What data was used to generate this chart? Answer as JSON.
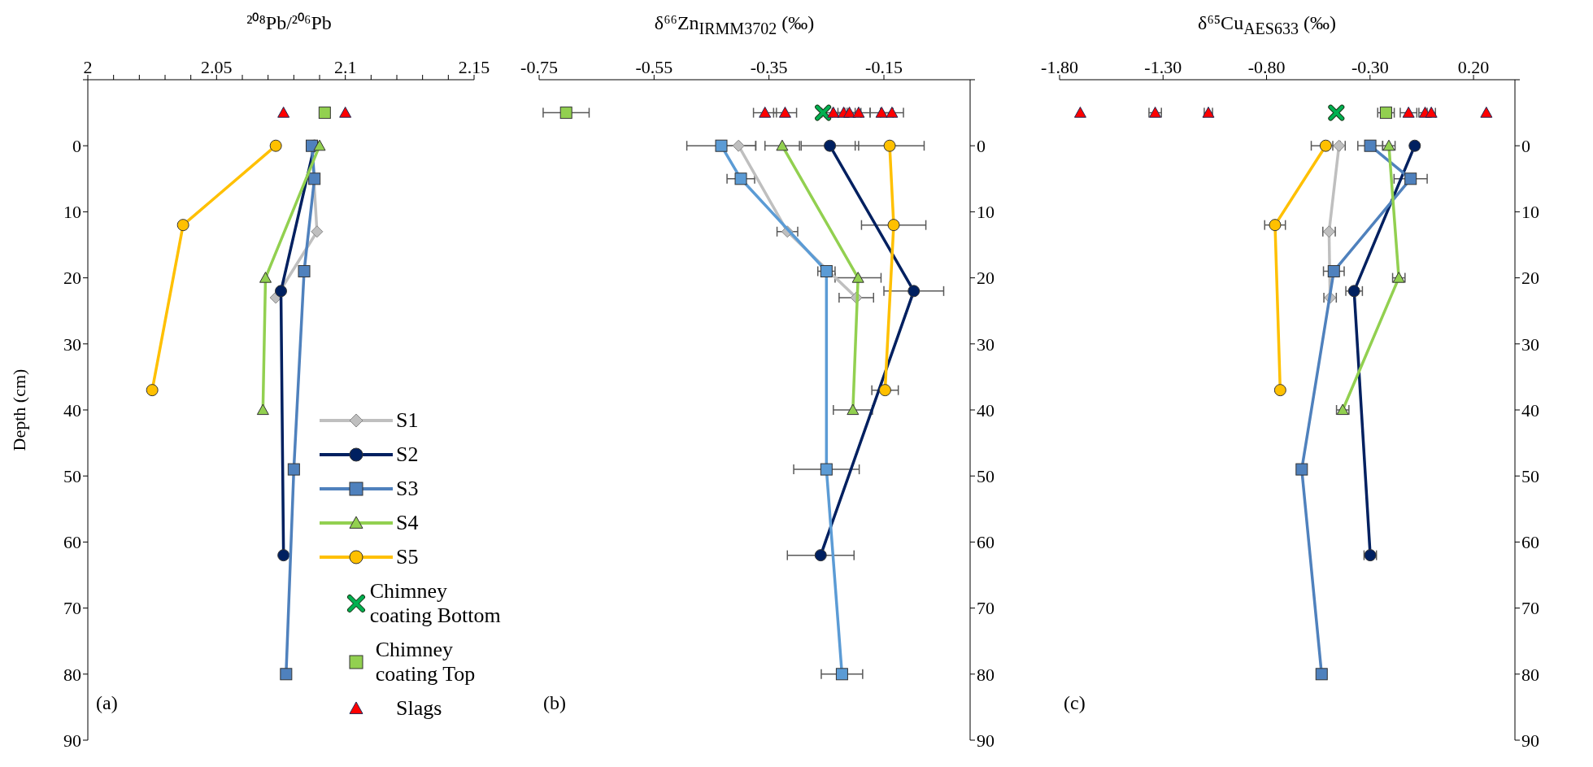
{
  "chart_data": [
    {
      "type": "line",
      "xlabel": "²⁰⁸Pb/²⁰⁶Pb",
      "ylabel": "Depth (cm)",
      "xlim": [
        2,
        2.15
      ],
      "xticks": [
        2,
        {
          "value": 2.01,
          "label": null
        },
        {
          "value": 2.02,
          "label": null
        },
        {
          "value": 2.03,
          "label": null
        },
        {
          "value": 2.04,
          "label": null
        },
        2.05,
        {
          "value": 2.06,
          "label": null
        },
        {
          "value": 2.07,
          "label": null
        },
        {
          "value": 2.08,
          "label": null
        },
        {
          "value": 2.09,
          "label": null
        },
        2.1,
        {
          "value": 2.11,
          "label": null
        },
        {
          "value": 2.12,
          "label": null
        },
        {
          "value": 2.13,
          "label": null
        },
        {
          "value": 2.14,
          "label": null
        },
        2.15
      ],
      "ylim": [
        90,
        -10
      ],
      "yticks": [
        {
          "value": -10,
          "label": null
        },
        0,
        10,
        20,
        30,
        40,
        50,
        60,
        70,
        80,
        90
      ],
      "legend": "bottom right",
      "annotations": [
        "(a)"
      ],
      "series": [
        {
          "name": "S1",
          "color": "#bfbfbf",
          "marker": "diamond",
          "x": [
            2.087,
            2.089,
            2.073
          ],
          "values": [
            0,
            13,
            23
          ]
        },
        {
          "name": "S2",
          "color": "#002060",
          "marker": "circle",
          "x": [
            2.088,
            2.075,
            2.076
          ],
          "values": [
            0,
            22,
            62
          ]
        },
        {
          "name": "S3",
          "color": "#4f81bd",
          "marker": "square",
          "x": [
            2.087,
            2.088,
            2.084,
            2.08,
            2.077
          ],
          "values": [
            0,
            5,
            19,
            49,
            80
          ]
        },
        {
          "name": "S4",
          "color": "#92d050",
          "marker": "triangle",
          "x": [
            2.09,
            2.069,
            2.068
          ],
          "values": [
            0,
            20,
            40
          ]
        },
        {
          "name": "S5",
          "color": "#ffc000",
          "marker": "circle",
          "x": [
            2.073,
            2.037,
            2.025
          ],
          "values": [
            0,
            12,
            37
          ]
        },
        {
          "name": "Chimney coating Bottom",
          "type": "scatter",
          "color": "#00b050",
          "marker": "cross"
        },
        {
          "name": "Chimney coating Top",
          "type": "scatter",
          "color": "#92d050",
          "marker": "square",
          "x": [
            2.092
          ],
          "values": [
            -5
          ]
        },
        {
          "name": "Slags",
          "type": "scatter",
          "color": "#ff0000",
          "marker": "triangle",
          "x": [
            2.076,
            2.1
          ],
          "values": [
            -5,
            -5
          ]
        }
      ]
    },
    {
      "type": "line",
      "xlabel": "δ⁶⁶Zn$_{IRMM3702}$ (‰)",
      "xlim": [
        -0.75,
        0
      ],
      "xticks": [
        -0.75,
        -0.55,
        -0.35,
        -0.15
      ],
      "y2lim": [
        90,
        -10
      ],
      "y2ticks": [
        {
          "value": -10,
          "label": null
        },
        0,
        10,
        20,
        30,
        40,
        50,
        60,
        70,
        80,
        90
      ],
      "annotations": [
        "(b)"
      ],
      "series": [
        {
          "color": "#bfbfbf",
          "marker": "diamond",
          "axis": "y2",
          "x": [
            -0.403,
            -0.318,
            -0.198
          ],
          "values": [
            0,
            13,
            23
          ],
          "xerrors": [
            0.03,
            0.018,
            0.03
          ]
        },
        {
          "color": "#002060",
          "marker": "circle",
          "axis": "y2",
          "x": [
            -0.244,
            -0.098,
            -0.26
          ],
          "values": [
            0,
            22,
            62
          ],
          "xerrors": [
            0.05,
            0.052,
            0.058
          ]
        },
        {
          "color": "#5b9bd5",
          "marker": "square",
          "axis": "y2",
          "x": [
            -0.433,
            -0.399,
            -0.25,
            -0.25,
            -0.223
          ],
          "values": [
            0,
            5,
            19,
            49,
            80
          ],
          "xerrors": [
            0.06,
            0.024,
            0.015,
            0.057,
            0.036
          ]
        },
        {
          "color": "#92d050",
          "marker": "triangle",
          "axis": "y2",
          "x": [
            -0.327,
            -0.195,
            -0.204
          ],
          "values": [
            0,
            20,
            40
          ],
          "xerrors": [
            0.03,
            0.04,
            0.034
          ]
        },
        {
          "color": "#ffc000",
          "marker": "circle",
          "axis": "y2",
          "x": [
            -0.14,
            -0.133,
            -0.148
          ],
          "values": [
            0,
            12,
            37
          ],
          "xerrors": [
            0.06,
            0.056,
            0.023
          ]
        },
        {
          "type": "scatter",
          "color": "#00b050",
          "marker": "cross",
          "axis": "y2",
          "x": [
            -0.256
          ],
          "values": [
            -5
          ],
          "xerrors": [
            null
          ]
        },
        {
          "type": "scatter",
          "color": "#92d050",
          "marker": "square",
          "axis": "y2",
          "x": [
            -0.703
          ],
          "values": [
            -5
          ],
          "xerrors": [
            0.04
          ]
        },
        {
          "type": "scatter",
          "color": "#ff0000",
          "marker": "triangle",
          "axis": "y2",
          "x": [
            -0.357,
            -0.322,
            -0.238,
            -0.22,
            -0.21,
            -0.194,
            -0.154,
            -0.136
          ],
          "values": [
            -5,
            -5,
            -5,
            -5,
            -5,
            -5,
            -5,
            -5
          ],
          "xerrors": [
            0.02,
            0.02,
            0.02,
            0.02,
            0.02,
            0.02,
            0.02,
            0.02
          ]
        }
      ]
    },
    {
      "type": "line",
      "xlabel": "δ⁶⁵Cu$_{AES633}$ (‰)",
      "xlim": [
        -1.8,
        0.4
      ],
      "xticks": [
        {
          "value": -1.8,
          "label": "-1.80"
        },
        {
          "value": -1.3,
          "label": "-1.30"
        },
        {
          "value": -0.8,
          "label": "-0.80"
        },
        {
          "value": -0.3,
          "label": "-0.30"
        },
        {
          "value": 0.2,
          "label": "0.20"
        }
      ],
      "y2lim": [
        90,
        -10
      ],
      "y2ticks": [
        {
          "value": -10,
          "label": null
        },
        0,
        10,
        20,
        30,
        40,
        50,
        60,
        70,
        80,
        90
      ],
      "annotations": [
        "(c)"
      ],
      "series": [
        {
          "color": "#bfbfbf",
          "marker": "diamond",
          "axis": "y2",
          "x": [
            -0.45,
            -0.498,
            -0.493
          ],
          "values": [
            0,
            13,
            23
          ],
          "xerrors": [
            0.03,
            0.03,
            0.03
          ]
        },
        {
          "color": "#002060",
          "marker": "circle",
          "axis": "y2",
          "x": [
            -0.084,
            -0.377,
            -0.299
          ],
          "values": [
            0,
            22,
            62
          ],
          "xerrors": [
            null,
            0.04,
            0.03
          ]
        },
        {
          "color": "#4f81bd",
          "marker": "square",
          "axis": "y2",
          "x": [
            -0.299,
            -0.104,
            -0.475,
            -0.63,
            -0.534
          ],
          "values": [
            0,
            5,
            19,
            49,
            80
          ],
          "xerrors": [
            0.06,
            0.08,
            0.05,
            null,
            null
          ]
        },
        {
          "color": "#92d050",
          "marker": "triangle",
          "axis": "y2",
          "x": [
            -0.209,
            -0.161,
            -0.432
          ],
          "values": [
            0,
            20,
            40
          ],
          "xerrors": [
            0.03,
            0.03,
            0.03
          ]
        },
        {
          "color": "#ffc000",
          "marker": "circle",
          "axis": "y2",
          "x": [
            -0.514,
            -0.759,
            -0.734
          ],
          "values": [
            0,
            12,
            37
          ],
          "xerrors": [
            0.07,
            0.05,
            null
          ]
        },
        {
          "type": "scatter",
          "color": "#00b050",
          "marker": "cross",
          "axis": "y2",
          "x": [
            -0.463
          ],
          "values": [
            -5
          ],
          "xerrors": [
            null
          ]
        },
        {
          "type": "scatter",
          "color": "#92d050",
          "marker": "square",
          "axis": "y2",
          "x": [
            -0.223
          ],
          "values": [
            -5
          ],
          "xerrors": [
            0.04
          ]
        },
        {
          "type": "scatter",
          "color": "#ff0000",
          "marker": "triangle",
          "axis": "y2",
          "x": [
            -1.7,
            -1.338,
            -1.081,
            -0.114,
            -0.034,
            -0.004,
            0.262
          ],
          "values": [
            -5,
            -5,
            -5,
            -5,
            -5,
            -5,
            -5
          ],
          "xerrors": [
            null,
            0.03,
            0.02,
            0.04,
            0.03,
            0.02,
            null
          ]
        }
      ]
    }
  ]
}
